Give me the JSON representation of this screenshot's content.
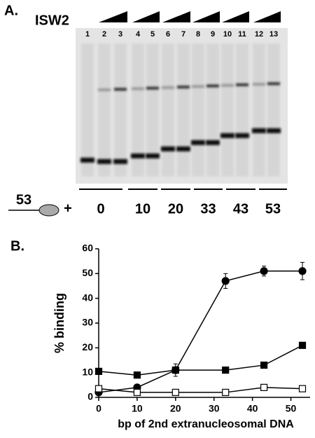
{
  "panel_a": {
    "label": "A.",
    "protein": "ISW2",
    "lanes": [
      "1",
      "2",
      "3",
      "4",
      "5",
      "6",
      "7",
      "8",
      "9",
      "10",
      "11",
      "12",
      "13"
    ],
    "construct_length": "53",
    "plus": "+",
    "groups": [
      "0",
      "10",
      "20",
      "33",
      "43",
      "53"
    ]
  },
  "panel_b": {
    "label": "B."
  },
  "chart_data": {
    "type": "line",
    "x_label": "bp of 2nd extranucleosomal DNA",
    "y_label": "% binding",
    "xlim": [
      0,
      55
    ],
    "ylim": [
      0,
      60
    ],
    "xticks": [
      0,
      10,
      20,
      30,
      40,
      50
    ],
    "yticks": [
      0,
      10,
      20,
      30,
      40,
      50,
      60
    ],
    "x": [
      0,
      10,
      20,
      33,
      43,
      53
    ],
    "series": [
      {
        "marker": "circle",
        "filled": true,
        "color": "#000000",
        "values": [
          2,
          4,
          11,
          47,
          51,
          51
        ],
        "errors": [
          null,
          null,
          2.5,
          3,
          2,
          3.5
        ]
      },
      {
        "marker": "square",
        "filled": true,
        "color": "#000000",
        "values": [
          10.5,
          9,
          11,
          11,
          13,
          21
        ]
      },
      {
        "marker": "square",
        "filled": false,
        "color": "#000000",
        "values": [
          3.5,
          2,
          2,
          2,
          4,
          3.5
        ]
      }
    ]
  }
}
